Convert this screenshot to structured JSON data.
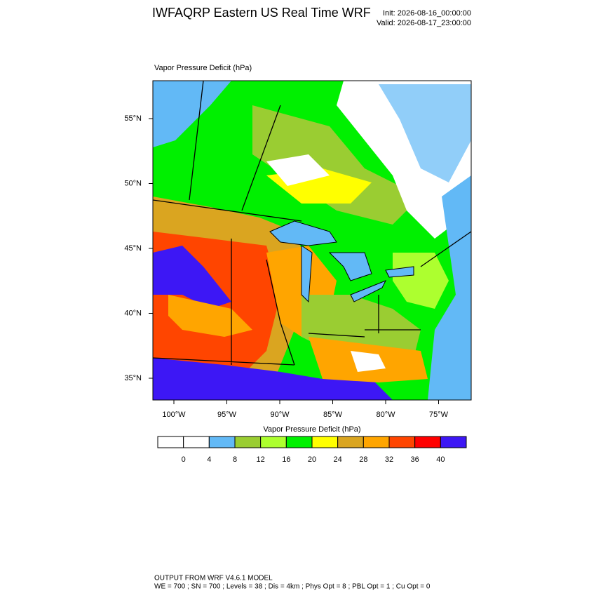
{
  "header": {
    "title": "IWFAQRP Eastern US Real Time WRF",
    "init": "Init: 2026-08-16_00:00:00",
    "valid": "Valid: 2026-08-17_23:00:00"
  },
  "map": {
    "field_label": "Vapor Pressure Deficit   (hPa)",
    "lat_labels": [
      {
        "value": 55,
        "label": "55°N"
      },
      {
        "value": 50,
        "label": "50°N"
      },
      {
        "value": 45,
        "label": "45°N"
      },
      {
        "value": 40,
        "label": "40°N"
      },
      {
        "value": 35,
        "label": "35°N"
      }
    ],
    "lon_labels": [
      {
        "value": -100,
        "label": "100°W"
      },
      {
        "value": -95,
        "label": "95°W"
      },
      {
        "value": -90,
        "label": "90°W"
      },
      {
        "value": -85,
        "label": "85°W"
      },
      {
        "value": -80,
        "label": "80°W"
      },
      {
        "value": -75,
        "label": "75°W"
      }
    ]
  },
  "colorbar": {
    "title": "Vapor Pressure Deficit  (hPa)",
    "colors": [
      "#ffffff",
      "#ffffff",
      "#62b9f6",
      "#9acd32",
      "#adff2f",
      "#00f000",
      "#ffff00",
      "#daa520",
      "#ffa500",
      "#ff4500",
      "#ff0000",
      "#3d17f5"
    ],
    "ticks": [
      0,
      4,
      8,
      12,
      16,
      20,
      24,
      28,
      32,
      36,
      40
    ]
  },
  "footer": {
    "line1": "OUTPUT FROM WRF V4.6.1 MODEL",
    "line2": "WE = 700 ; SN = 700 ; Levels = 38 ; Dis = 4km ; Phys Opt = 8 ; PBL Opt = 1 ; Cu Opt = 0"
  }
}
